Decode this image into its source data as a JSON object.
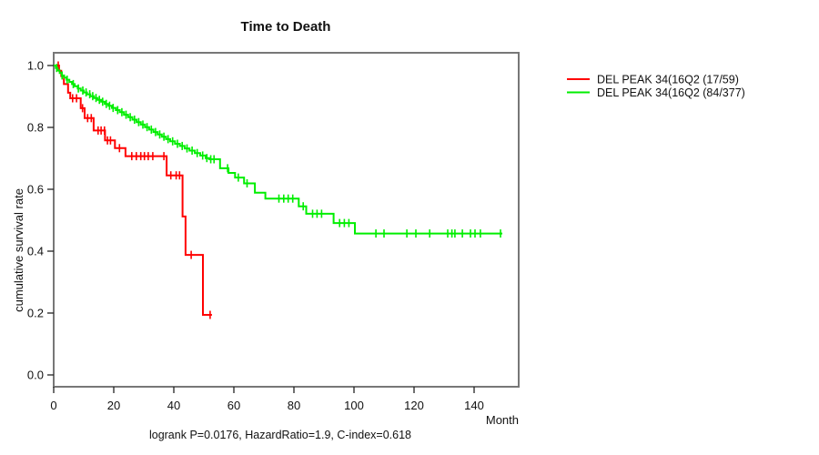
{
  "chart_data": {
    "type": "line",
    "subtype": "kaplan-meier-step-survival",
    "title": "Time to Death",
    "xlabel": "Month",
    "ylabel": "cumulative survival rate",
    "annotation": "logrank P=0.0176, HazardRatio=1.9, C-index=0.618",
    "x_ticks": [
      0,
      20,
      40,
      60,
      80,
      100,
      120,
      140
    ],
    "y_ticks": [
      0.0,
      0.2,
      0.4,
      0.6,
      0.8,
      1.0
    ],
    "xlim": [
      0,
      155
    ],
    "ylim": [
      0,
      1.0
    ],
    "grid": false,
    "legend_position": "right-outside",
    "series": [
      {
        "name": "group-1",
        "label": "DEL PEAK 34(16Q2 (17/59)",
        "color": "#ff0000",
        "steps": [
          [
            0,
            1.0
          ],
          [
            1.8,
            0.983
          ],
          [
            2.5,
            0.966
          ],
          [
            3.4,
            0.94
          ],
          [
            4.8,
            0.912
          ],
          [
            5.5,
            0.894
          ],
          [
            9.0,
            0.862
          ],
          [
            10.3,
            0.83
          ],
          [
            13.3,
            0.79
          ],
          [
            17.1,
            0.758
          ],
          [
            20.4,
            0.733
          ],
          [
            23.9,
            0.707
          ],
          [
            37.6,
            0.645
          ],
          [
            42.9,
            0.512
          ],
          [
            43.9,
            0.388
          ],
          [
            49.7,
            0.194
          ]
        ],
        "end_time": 52.7,
        "censor_times": [
          1.5,
          6.3,
          7.6,
          9.6,
          11.3,
          12.5,
          14.8,
          15.8,
          16.9,
          17.9,
          18.9,
          21.9,
          26.0,
          27.5,
          29.0,
          30.2,
          31.5,
          33.0,
          36.7,
          39.0,
          40.8,
          41.9,
          45.8,
          52.1
        ]
      },
      {
        "name": "group-2",
        "label": "DEL PEAK 34(16Q2 (84/377)",
        "color": "#00ee00",
        "steps": [
          [
            0,
            1.0
          ],
          [
            0.7,
            0.992
          ],
          [
            1.3,
            0.984
          ],
          [
            2.0,
            0.976
          ],
          [
            2.7,
            0.968
          ],
          [
            3.5,
            0.961
          ],
          [
            4.3,
            0.954
          ],
          [
            5.2,
            0.947
          ],
          [
            6.1,
            0.94
          ],
          [
            7.0,
            0.933
          ],
          [
            8.0,
            0.926
          ],
          [
            9.0,
            0.919
          ],
          [
            10.0,
            0.913
          ],
          [
            11.1,
            0.907
          ],
          [
            12.2,
            0.901
          ],
          [
            13.4,
            0.895
          ],
          [
            14.6,
            0.889
          ],
          [
            15.8,
            0.883
          ],
          [
            17.0,
            0.876
          ],
          [
            18.2,
            0.87
          ],
          [
            19.4,
            0.863
          ],
          [
            20.7,
            0.856
          ],
          [
            22.0,
            0.849
          ],
          [
            23.4,
            0.841
          ],
          [
            24.8,
            0.833
          ],
          [
            26.2,
            0.825
          ],
          [
            27.6,
            0.817
          ],
          [
            29.0,
            0.809
          ],
          [
            30.4,
            0.801
          ],
          [
            31.8,
            0.793
          ],
          [
            33.2,
            0.785
          ],
          [
            34.6,
            0.777
          ],
          [
            36.0,
            0.77
          ],
          [
            37.4,
            0.762
          ],
          [
            38.8,
            0.755
          ],
          [
            40.4,
            0.747
          ],
          [
            42.0,
            0.74
          ],
          [
            43.6,
            0.732
          ],
          [
            45.2,
            0.725
          ],
          [
            47.0,
            0.717
          ],
          [
            48.8,
            0.709
          ],
          [
            50.6,
            0.701
          ],
          [
            51.8,
            0.697
          ],
          [
            55.4,
            0.668
          ],
          [
            58.2,
            0.653
          ],
          [
            60.4,
            0.638
          ],
          [
            63.4,
            0.619
          ],
          [
            67.0,
            0.589
          ],
          [
            70.5,
            0.57
          ],
          [
            81.6,
            0.545
          ],
          [
            84.1,
            0.521
          ],
          [
            93.2,
            0.491
          ],
          [
            100.3,
            0.457
          ]
        ],
        "end_time": 149.4,
        "censor_times": [
          1.0,
          2.8,
          4.5,
          6.5,
          8.2,
          9.7,
          10.8,
          12.0,
          13.0,
          14.1,
          15.2,
          16.3,
          17.5,
          18.6,
          19.8,
          21.3,
          22.7,
          24.1,
          25.5,
          26.9,
          28.3,
          29.7,
          31.1,
          32.5,
          33.9,
          35.3,
          36.7,
          38.1,
          39.6,
          41.2,
          42.8,
          44.4,
          46.1,
          47.8,
          49.6,
          51.0,
          52.3,
          53.4,
          57.9,
          61.5,
          64.4,
          75.0,
          76.6,
          78.1,
          79.6,
          83.1,
          86.2,
          87.7,
          89.2,
          95.2,
          96.8,
          98.3,
          107.3,
          110.0,
          117.6,
          120.6,
          125.2,
          131.2,
          132.6,
          133.6,
          136.1,
          138.8,
          140.3,
          142.1,
          148.8
        ]
      }
    ]
  },
  "style": {
    "box_color": "#777777",
    "tick_color": "#222222"
  }
}
